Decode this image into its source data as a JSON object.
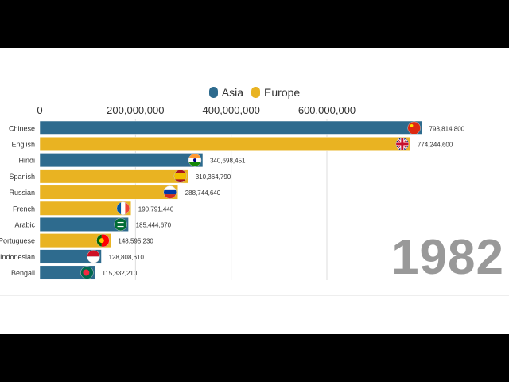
{
  "legend": [
    {
      "name": "Asia",
      "color": "#2e6b8e"
    },
    {
      "name": "Europe",
      "color": "#e9b322"
    }
  ],
  "year": "1982",
  "chart_data": {
    "type": "bar",
    "orientation": "horizontal",
    "xlim": [
      0,
      800000000
    ],
    "x_ticks": [
      0,
      200000000,
      400000000,
      600000000
    ],
    "x_tick_labels": [
      "0",
      "200,000,000",
      "400,000,000",
      "600,000,000"
    ],
    "categories": [
      "Chinese",
      "English",
      "Hindi",
      "Spanish",
      "Russian",
      "French",
      "Arabic",
      "Portuguese",
      "Indonesian",
      "Bengali"
    ],
    "values": [
      798814800,
      774244600,
      340698451,
      310364790,
      288744640,
      190791440,
      185444670,
      148595230,
      128808610,
      115332210
    ],
    "value_labels": [
      "798,814,800",
      "774,244,600",
      "340,698,451",
      "310,364,790",
      "288,744,640",
      "190,791,440",
      "185,444,670",
      "148,595,230",
      "128,808,610",
      "115,332,210"
    ],
    "region": [
      "Asia",
      "Europe",
      "Asia",
      "Europe",
      "Europe",
      "Europe",
      "Asia",
      "Europe",
      "Asia",
      "Asia"
    ],
    "flag_icons": [
      "china-flag-icon",
      "uk-flag-icon",
      "india-flag-icon",
      "spain-flag-icon",
      "russia-flag-icon",
      "france-flag-icon",
      "saudi-flag-icon",
      "portugal-flag-icon",
      "indonesia-flag-icon",
      "bangladesh-flag-icon"
    ],
    "grid": true,
    "legend_position": "top-center"
  }
}
